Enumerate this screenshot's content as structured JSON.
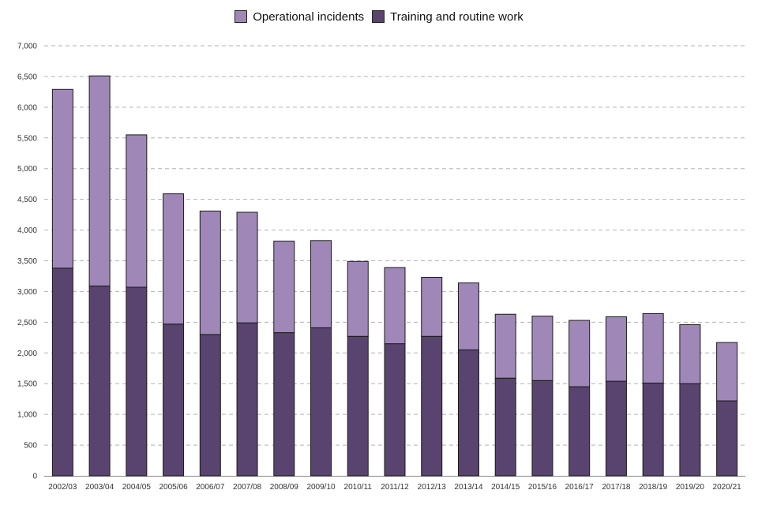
{
  "chart_data": {
    "type": "bar",
    "stacked": true,
    "title": "",
    "xlabel": "",
    "ylabel": "",
    "ylim": [
      0,
      7000
    ],
    "yticks": [
      0,
      500,
      1000,
      1500,
      2000,
      2500,
      3000,
      3500,
      4000,
      4500,
      5000,
      5500,
      6000,
      6500,
      7000
    ],
    "ytick_labels": [
      "0",
      "500",
      "1,000",
      "1,500",
      "2,000",
      "2,500",
      "3,000",
      "3,500",
      "4,000",
      "4,500",
      "5,000",
      "5,500",
      "6,000",
      "6,500",
      "7,000"
    ],
    "grid": true,
    "legend_position": "top-center",
    "categories": [
      "2002/03",
      "2003/04",
      "2004/05",
      "2005/06",
      "2006/07",
      "2007/08",
      "2008/09",
      "2009/10",
      "2010/11",
      "2011/12",
      "2012/13",
      "2013/14",
      "2014/15",
      "2015/16",
      "2016/17",
      "2017/18",
      "2018/19",
      "2019/20",
      "2020/21"
    ],
    "series": [
      {
        "name": "Training and routine work",
        "color": "#58446f",
        "values": [
          3380,
          3090,
          3070,
          2470,
          2300,
          2490,
          2330,
          2410,
          2270,
          2150,
          2270,
          2050,
          1590,
          1550,
          1450,
          1540,
          1510,
          1500,
          1220
        ]
      },
      {
        "name": "Operational incidents",
        "color": "#9f88b8",
        "values": [
          2910,
          3420,
          2480,
          2120,
          2010,
          1800,
          1490,
          1420,
          1220,
          1240,
          960,
          1090,
          1040,
          1050,
          1080,
          1050,
          1130,
          960,
          950
        ]
      }
    ]
  },
  "legend": {
    "items": [
      {
        "label": "Operational incidents",
        "color": "#9f88b8"
      },
      {
        "label": "Training and routine work",
        "color": "#58446f"
      }
    ]
  }
}
